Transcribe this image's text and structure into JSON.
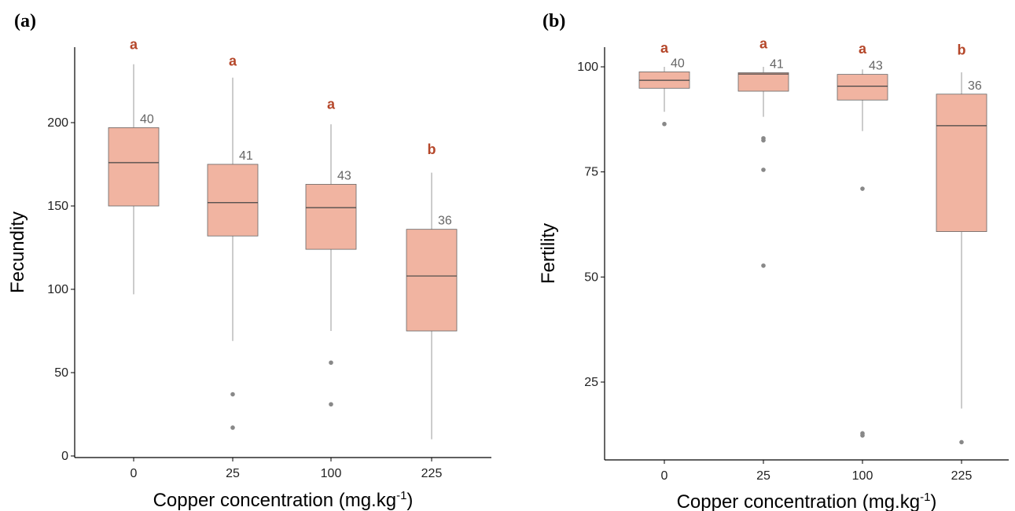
{
  "colors": {
    "box_fill": "#f1b4a1",
    "box_stroke": "#666666",
    "whisker": "#999999",
    "outlier": "#888888",
    "letter": "#b5472a",
    "axis": "#000000"
  },
  "chart_data": [
    {
      "type": "box",
      "panel_label": "(a)",
      "xlabel": "Copper concentration (mg.kg",
      "xlabel_sup": "-1",
      "xlabel_close": ")",
      "ylabel": "Fecundity",
      "ylim": [
        0,
        245
      ],
      "yticks": [
        "0",
        "50",
        "100",
        "150",
        "200"
      ],
      "categories": [
        "0",
        "25",
        "100",
        "225"
      ],
      "grid": false,
      "boxes": [
        {
          "category": "0",
          "whisker_low": 97,
          "q1": 150,
          "median": 176,
          "q3": 197,
          "whisker_high": 235,
          "outliers": [],
          "n": "40",
          "letter": "a",
          "letter_y": 247
        },
        {
          "category": "25",
          "whisker_low": 69,
          "q1": 132,
          "median": 152,
          "q3": 175,
          "whisker_high": 227,
          "outliers": [
            37,
            17
          ],
          "n": "41",
          "letter": "a",
          "letter_y": 237
        },
        {
          "category": "100",
          "whisker_low": 75,
          "q1": 124,
          "median": 149,
          "q3": 163,
          "whisker_high": 199,
          "outliers": [
            56,
            31
          ],
          "n": "43",
          "letter": "a",
          "letter_y": 211
        },
        {
          "category": "225",
          "whisker_low": 10,
          "q1": 75,
          "median": 108,
          "q3": 136,
          "whisker_high": 170,
          "outliers": [],
          "n": "36",
          "letter": "b",
          "letter_y": 184
        }
      ]
    },
    {
      "type": "box",
      "panel_label": "(b)",
      "xlabel": "Copper concentration (mg.kg",
      "xlabel_sup": "-1",
      "xlabel_close": ")",
      "ylabel": "Fertility",
      "ylim": [
        7,
        103.5
      ],
      "yticks": [
        "25",
        "50",
        "75",
        "100"
      ],
      "categories": [
        "0",
        "25",
        "100",
        "225"
      ],
      "grid": false,
      "boxes": [
        {
          "category": "0",
          "whisker_low": 89.3,
          "q1": 94.9,
          "median": 96.8,
          "q3": 98.8,
          "whisker_high": 100,
          "outliers": [
            86.4
          ],
          "n": "40",
          "letter": "a",
          "letter_y": 104.5
        },
        {
          "category": "25",
          "whisker_low": 88.1,
          "q1": 94.2,
          "median": 98.3,
          "q3": 98.6,
          "whisker_high": 100,
          "outliers": [
            83.0,
            82.5,
            75.5,
            52.7
          ],
          "n": "41",
          "letter": "a",
          "letter_y": 105.5
        },
        {
          "category": "100",
          "whisker_low": 84.7,
          "q1": 92.1,
          "median": 95.4,
          "q3": 98.2,
          "whisker_high": 99.4,
          "outliers": [
            71.0,
            12.8,
            12.3
          ],
          "n": "43",
          "letter": "a",
          "letter_y": 104.3
        },
        {
          "category": "225",
          "whisker_low": 18.7,
          "q1": 60.8,
          "median": 86.0,
          "q3": 93.5,
          "whisker_high": 98.7,
          "outliers": [
            10.7
          ],
          "n": "36",
          "letter": "b",
          "letter_y": 104.0
        }
      ]
    }
  ]
}
